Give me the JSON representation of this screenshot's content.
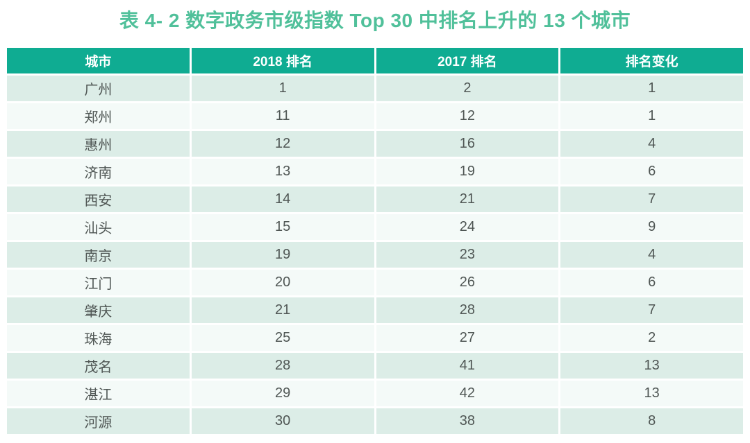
{
  "title": "表 4- 2 数字政务市级指数 Top 30 中排名上升的 13 个城市",
  "colors": {
    "page_bg": "#ffffff",
    "title": "#50c09a",
    "header_bg": "#0fac92",
    "header_text": "#ffffff",
    "row_odd_bg": "#dcede7",
    "row_even_bg": "#f4faf8",
    "cell_text": "#4f5654"
  },
  "chart_data": {
    "type": "table",
    "title": "表 4- 2 数字政务市级指数 Top 30 中排名上升的 13 个城市",
    "columns": [
      "城市",
      "2018 排名",
      "2017 排名",
      "排名变化"
    ],
    "rows": [
      [
        "广州",
        "1",
        "2",
        "1"
      ],
      [
        "郑州",
        "11",
        "12",
        "1"
      ],
      [
        "惠州",
        "12",
        "16",
        "4"
      ],
      [
        "济南",
        "13",
        "19",
        "6"
      ],
      [
        "西安",
        "14",
        "21",
        "7"
      ],
      [
        "汕头",
        "15",
        "24",
        "9"
      ],
      [
        "南京",
        "19",
        "23",
        "4"
      ],
      [
        "江门",
        "20",
        "26",
        "6"
      ],
      [
        "肇庆",
        "21",
        "28",
        "7"
      ],
      [
        "珠海",
        "25",
        "27",
        "2"
      ],
      [
        "茂名",
        "28",
        "41",
        "13"
      ],
      [
        "湛江",
        "29",
        "42",
        "13"
      ],
      [
        "河源",
        "30",
        "38",
        "8"
      ]
    ]
  }
}
